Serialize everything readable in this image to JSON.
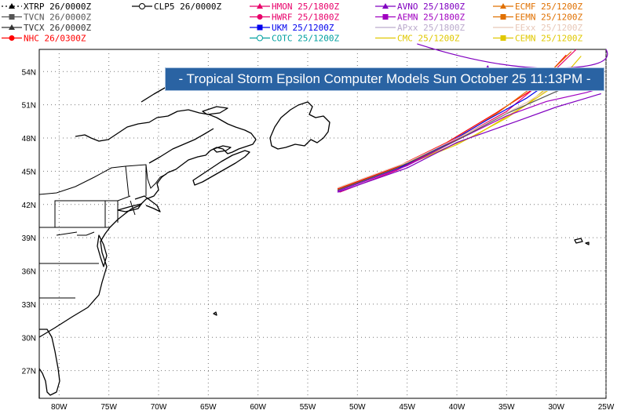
{
  "title": "- Tropical Storm Epsilon Computer Models Sun October 25 11:13PM -",
  "legend": [
    {
      "label": "XTRP 26/0000Z",
      "color": "#000000",
      "marker": "triangle",
      "dash": "dot"
    },
    {
      "label": "TVCN 26/0000Z",
      "color": "#555555",
      "marker": "square",
      "dash": "solid"
    },
    {
      "label": "TVCX 26/0000Z",
      "color": "#333333",
      "marker": "triangle",
      "dash": "solid"
    },
    {
      "label": "NHC 26/0300Z",
      "color": "#ff0000",
      "marker": "circle",
      "dash": "solid"
    },
    {
      "label": "CLP5 26/0000Z",
      "color": "#000000",
      "marker": "ring",
      "dash": "solid"
    },
    {
      "label": "HMON 25/1800Z",
      "color": "#e8006a",
      "marker": "triangle",
      "dash": "solid"
    },
    {
      "label": "HWRF 25/1800Z",
      "color": "#e8006a",
      "marker": "circle",
      "dash": "solid"
    },
    {
      "label": "UKM 25/1200Z",
      "color": "#0000ee",
      "marker": "square",
      "dash": "solid"
    },
    {
      "label": "COTC 25/1200Z",
      "color": "#00a0a0",
      "marker": "ring",
      "dash": "solid"
    },
    {
      "label": "AVNO 25/1800Z",
      "color": "#8000c0",
      "marker": "triangle",
      "dash": "solid"
    },
    {
      "label": "AEMN 25/1800Z",
      "color": "#a000c0",
      "marker": "square",
      "dash": "solid"
    },
    {
      "label": "APxx 25/1800Z",
      "color": "#bbaacc",
      "marker": "none",
      "dash": "solid"
    },
    {
      "label": "CMC 25/1200Z",
      "color": "#e0c800",
      "marker": "none",
      "dash": "solid"
    },
    {
      "label": "ECMF 25/1200Z",
      "color": "#e07000",
      "marker": "triangle",
      "dash": "solid"
    },
    {
      "label": "EEMN 25/1200Z",
      "color": "#e07000",
      "marker": "square",
      "dash": "solid"
    },
    {
      "label": "EExx 25/1200Z",
      "color": "#e8c8b8",
      "marker": "none",
      "dash": "solid"
    },
    {
      "label": "CEMN 25/1200Z",
      "color": "#e0c800",
      "marker": "square",
      "dash": "solid"
    }
  ],
  "lat_labels": [
    "54N",
    "51N",
    "48N",
    "45N",
    "42N",
    "39N",
    "36N",
    "33N",
    "30N",
    "27N"
  ],
  "lon_labels": [
    "80W",
    "75W",
    "70W",
    "65W",
    "60W",
    "55W",
    "50W",
    "45W",
    "40W",
    "35W",
    "30W",
    "25W"
  ]
}
